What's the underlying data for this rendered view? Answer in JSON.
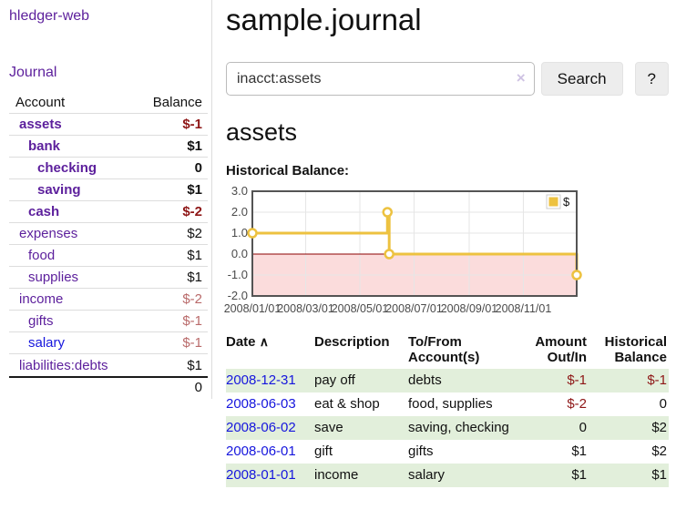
{
  "app": {
    "brand": "hledger-web",
    "nav_journal": "Journal"
  },
  "page": {
    "title": "sample.journal",
    "account_heading": "assets",
    "chart_label": "Historical Balance:"
  },
  "search": {
    "value": "inacct:assets",
    "clear_icon": "×",
    "button_label": "Search",
    "help_label": "?"
  },
  "colors": {
    "link_purple": "#5c1f9c",
    "link_blue": "#1616dd",
    "negative_strong": "#8e1616",
    "negative_soft": "#b96a6a",
    "row_stripe_green": "#e2efdb"
  },
  "sidebar_table": {
    "headers": {
      "account": "Account",
      "balance": "Balance"
    },
    "rows": [
      {
        "name": "assets",
        "balance": "$-1"
      },
      {
        "name": "bank",
        "balance": "$1"
      },
      {
        "name": "checking",
        "balance": "0"
      },
      {
        "name": "saving",
        "balance": "$1"
      },
      {
        "name": "cash",
        "balance": "$-2"
      },
      {
        "name": "expenses",
        "balance": "$2"
      },
      {
        "name": "food",
        "balance": "$1"
      },
      {
        "name": "supplies",
        "balance": "$1"
      },
      {
        "name": "income",
        "balance": "$-2"
      },
      {
        "name": "gifts",
        "balance": "$-1"
      },
      {
        "name": "salary",
        "balance": "$-1"
      },
      {
        "name": "liabilities:debts",
        "balance": "$1"
      }
    ],
    "total": "0"
  },
  "register": {
    "headers": {
      "date": "Date",
      "sort_icon": "∧",
      "description": "Description",
      "account": "To/From Account(s)",
      "amount": "Amount Out/In",
      "balance": "Historical Balance"
    },
    "rows": [
      {
        "date": "2008-12-31",
        "description": "pay off",
        "account": "debts",
        "amount": "$-1",
        "balance": "$-1"
      },
      {
        "date": "2008-06-03",
        "description": "eat & shop",
        "account": "food, supplies",
        "amount": "$-2",
        "balance": "0"
      },
      {
        "date": "2008-06-02",
        "description": "save",
        "account": "saving, checking",
        "amount": "0",
        "balance": "$2"
      },
      {
        "date": "2008-06-01",
        "description": "gift",
        "account": "gifts",
        "amount": "$1",
        "balance": "$2"
      },
      {
        "date": "2008-01-01",
        "description": "income",
        "account": "salary",
        "amount": "$1",
        "balance": "$1"
      }
    ]
  },
  "chart_data": {
    "type": "line",
    "title": "Historical Balance:",
    "step": true,
    "legend": {
      "label": "$",
      "position": "top-right"
    },
    "xlim": [
      "2008-01-01",
      "2008-12-31"
    ],
    "ylim": [
      -2,
      3
    ],
    "yticks": [
      3.0,
      2.0,
      1.0,
      0.0,
      -1.0,
      -2.0
    ],
    "xticks": [
      "2008/01/01",
      "2008/03/01",
      "2008/05/01",
      "2008/07/01",
      "2008/09/01",
      "2008/11/01"
    ],
    "points": [
      {
        "x": "2008-01-01",
        "y": 1
      },
      {
        "x": "2008-06-01",
        "y": 2
      },
      {
        "x": "2008-06-03",
        "y": 0
      },
      {
        "x": "2008-12-31",
        "y": -1
      }
    ],
    "grid": true,
    "colors": {
      "series": "#edc240",
      "marker_fill": "#ffffff",
      "below_zero_fill": "#fbdcdc",
      "zero_line": "#8b0000",
      "grid_line": "#e6e6e6",
      "border": "#545454",
      "tick_text": "#4a4a4a",
      "legend_box_border": "#cccccc"
    }
  }
}
